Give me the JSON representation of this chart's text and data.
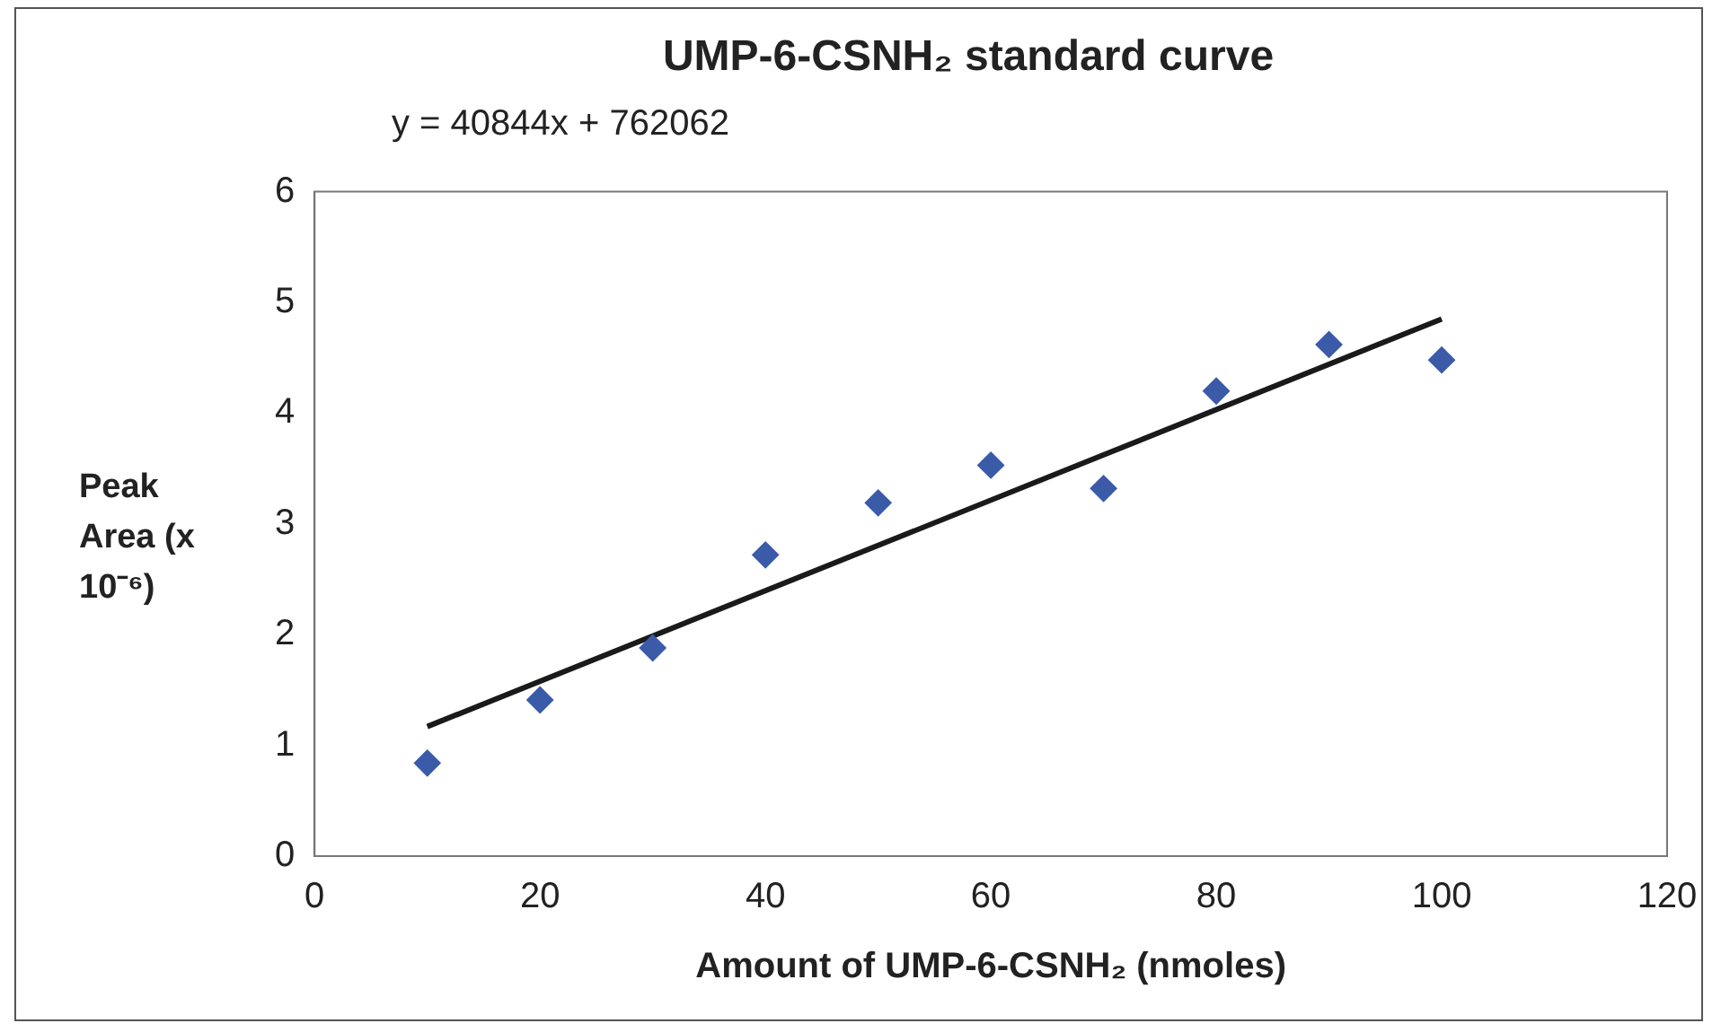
{
  "chart_data": {
    "type": "scatter",
    "title": "UMP-6-CSNH₂ standard curve",
    "xlabel": "Amount of UMP-6-CSNH₂ (nmoles)",
    "ylabel": "Peak Area (x 10⁻⁶)",
    "annotations": [
      "y = 40844x + 762062"
    ],
    "x": [
      10,
      20,
      30,
      40,
      50,
      60,
      70,
      80,
      90,
      100
    ],
    "series": [
      {
        "color": "#3b5ba9",
        "values": [
          0.84,
          1.41,
          1.88,
          2.72,
          3.19,
          3.53,
          3.32,
          4.2,
          4.62,
          4.48
        ]
      },
      {
        "type": "line",
        "marker": "none",
        "color": "#1a1a1a",
        "x": [
          10,
          100
        ],
        "values": [
          1.17,
          4.85
        ]
      }
    ],
    "xlim": [
      0,
      120
    ],
    "xticks": [
      0,
      20,
      40,
      60,
      80,
      100,
      120
    ],
    "ylim": [
      0,
      6
    ],
    "yticks": [
      0,
      1,
      2,
      3,
      4,
      5,
      6
    ],
    "grid": false,
    "legend": false,
    "marker": "diamond"
  }
}
